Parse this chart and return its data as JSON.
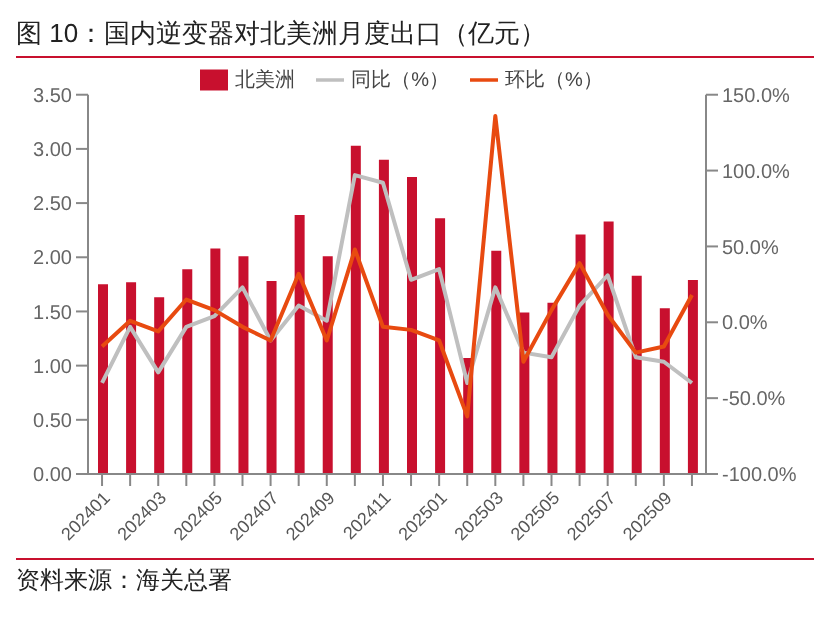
{
  "chart_data": {
    "type": "bar",
    "title": "图 10：国内逆变器对北美洲月度出口（亿元）",
    "categories": [
      "202401",
      null,
      "202403",
      null,
      "202405",
      null,
      "202407",
      null,
      "202409",
      null,
      "202411",
      null,
      "202501",
      null,
      "202503",
      null,
      "202505",
      null,
      "202507",
      null,
      "202509",
      null
    ],
    "series": [
      {
        "name": "北美洲",
        "color": "#c8102e",
        "values": [
          1.75,
          1.77,
          1.63,
          1.89,
          2.08,
          2.01,
          1.78,
          2.39,
          2.01,
          3.03,
          2.9,
          2.74,
          2.36,
          1.07,
          2.06,
          1.49,
          1.58,
          2.21,
          2.33,
          1.83,
          1.53,
          1.79
        ]
      },
      {
        "name": "同比（%）",
        "type": "line",
        "axis": "y2",
        "color": "#bfbfbf",
        "values": [
          -40,
          -3,
          -33,
          -3,
          4,
          23,
          -12,
          11,
          1,
          97,
          92,
          28,
          35,
          -40,
          23,
          -20,
          -23,
          11,
          31,
          -23,
          -26,
          -40
        ]
      },
      {
        "name": "环比（%）",
        "type": "line",
        "axis": "y2",
        "color": "#e84a10",
        "values": [
          -16,
          1,
          -6,
          15,
          8,
          -3,
          -12,
          32,
          -12,
          48,
          -3,
          -5,
          -12,
          -62,
          136,
          -26,
          8,
          39,
          5,
          -20,
          -16,
          18
        ]
      }
    ],
    "ylim": [
      0,
      3.5
    ],
    "yticks": [
      {
        "value": 0,
        "label": "0.00"
      },
      {
        "value": 0.5,
        "label": "0.50"
      },
      {
        "value": 1,
        "label": "1.00"
      },
      {
        "value": 1.5,
        "label": "1.50"
      },
      {
        "value": 2,
        "label": "2.00"
      },
      {
        "value": 2.5,
        "label": "2.50"
      },
      {
        "value": 3,
        "label": "3.00"
      },
      {
        "value": 3.5,
        "label": "3.50"
      }
    ],
    "y2lim": [
      -100,
      150
    ],
    "y2ticks": [
      {
        "value": -100,
        "label": "-100.0%"
      },
      {
        "value": -50,
        "label": "-50.0%"
      },
      {
        "value": 0,
        "label": "0.0%"
      },
      {
        "value": 50,
        "label": "50.0%"
      },
      {
        "value": 100,
        "label": "100.0%"
      },
      {
        "value": 150,
        "label": "150.0%"
      }
    ],
    "legend": "top",
    "grid": false,
    "marker": "none",
    "line_style": "solid",
    "annotations": [
      "资料来源：海关总署"
    ]
  }
}
